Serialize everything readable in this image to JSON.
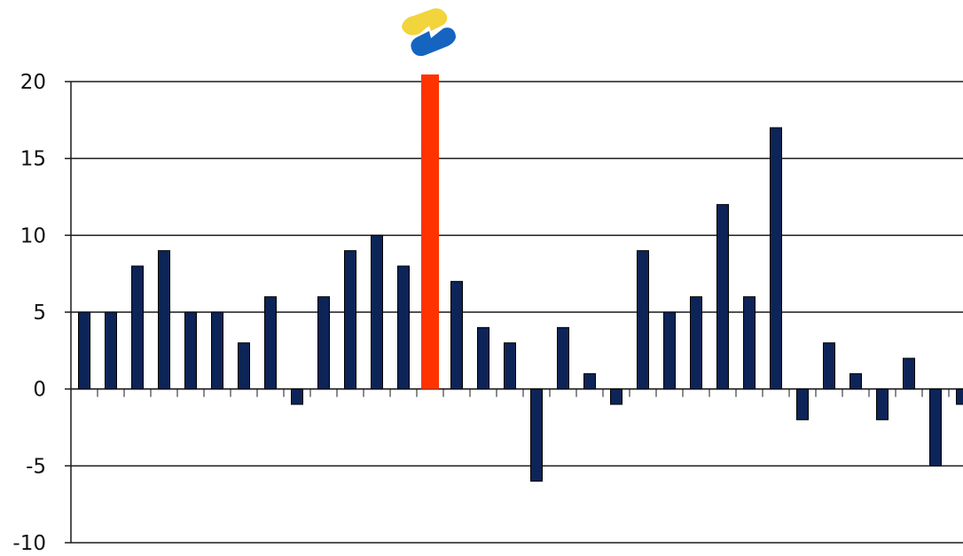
{
  "chart_data": {
    "type": "bar",
    "title": "",
    "xlabel": "",
    "ylabel": "",
    "ylim": [
      -10,
      20
    ],
    "yticks": [
      -10,
      -5,
      0,
      5,
      10,
      15,
      20
    ],
    "grid": true,
    "legend": "none",
    "series": [
      {
        "color": "#0c2458",
        "values": [
          5,
          5,
          8,
          9,
          5,
          5,
          3,
          6,
          -1,
          6,
          9,
          10,
          8,
          null,
          7,
          4,
          3,
          -6,
          4,
          1,
          -1,
          9,
          5,
          6,
          12,
          6,
          17,
          -2,
          3,
          1,
          -2,
          2,
          -5,
          -1
        ]
      }
    ],
    "marker": {
      "color": "#ff3300",
      "position_index": 13,
      "description_icon": "logo-icon"
    }
  },
  "logo": {
    "icon": "logo-icon",
    "colors": {
      "yellow": "#f2d43c",
      "blue": "#1565c0"
    }
  }
}
